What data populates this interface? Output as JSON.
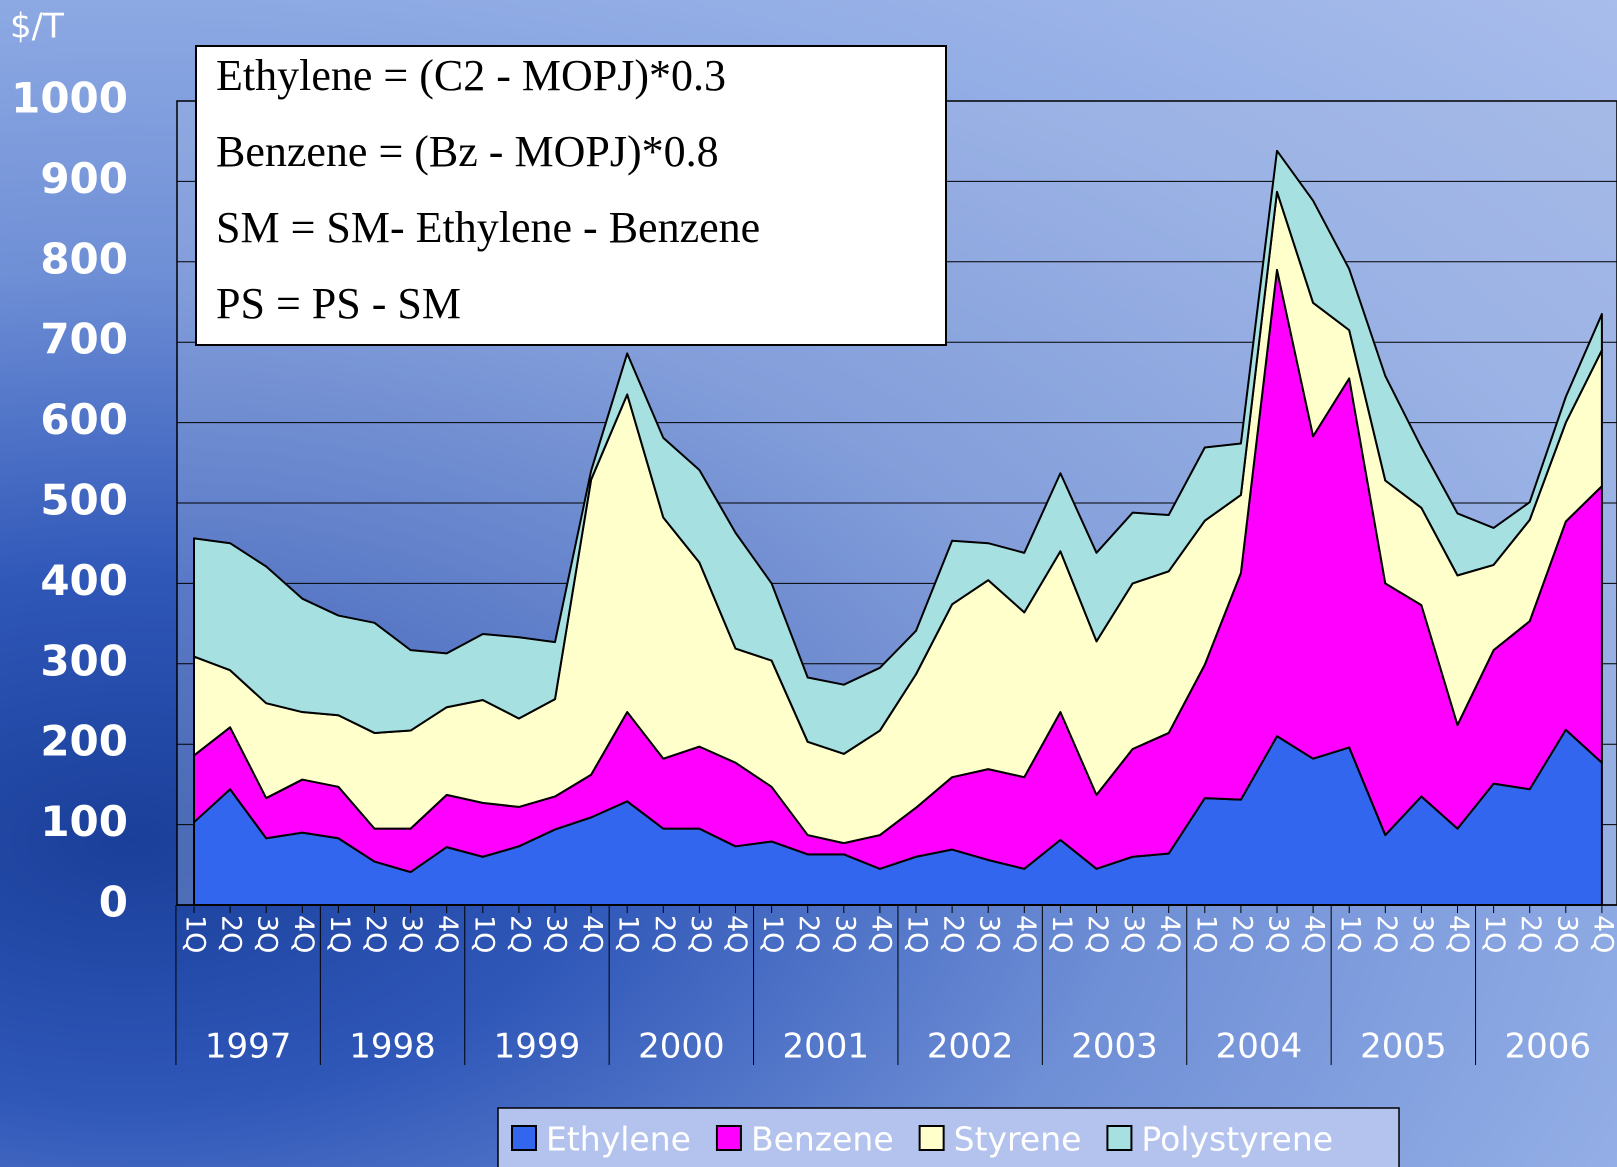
{
  "chart_data": {
    "type": "stacked_area",
    "y_label": "$/T",
    "annotations": [
      "Ethylene = (C2 - MOPJ)*0.3",
      "Benzene = (Bz - MOPJ)*0.8",
      "SM = SM- Ethylene - Benzene",
      "PS = PS - SM"
    ],
    "categories": [
      "1Q",
      "2Q",
      "3Q",
      "4Q",
      "1Q",
      "2Q",
      "3Q",
      "4Q",
      "1Q",
      "2Q",
      "3Q",
      "4Q",
      "1Q",
      "2Q",
      "3Q",
      "4Q",
      "1Q",
      "2Q",
      "3Q",
      "4Q",
      "1Q",
      "2Q",
      "3Q",
      "4Q",
      "1Q",
      "2Q",
      "3Q",
      "4Q",
      "1Q",
      "2Q",
      "3Q",
      "4Q",
      "1Q",
      "2Q",
      "3Q",
      "4Q",
      "1Q",
      "2Q",
      "3Q",
      "4Q"
    ],
    "years": [
      "1997",
      "1998",
      "1999",
      "2000",
      "2001",
      "2002",
      "2003",
      "2004",
      "2005",
      "2006"
    ],
    "ylim": [
      0,
      1000
    ],
    "yticks": [
      0,
      100,
      200,
      300,
      400,
      500,
      600,
      700,
      800,
      900,
      1000
    ],
    "grid": true,
    "legend": "bottom",
    "series": [
      {
        "name": "Ethylene",
        "color": "#3366ee",
        "values": [
          103,
          144,
          83,
          90,
          83,
          54,
          41,
          72,
          60,
          73,
          94,
          109,
          129,
          95,
          95,
          73,
          79,
          63,
          63,
          45,
          60,
          69,
          56,
          45,
          81,
          45,
          60,
          64,
          133,
          131,
          210,
          182,
          196,
          87,
          135,
          95,
          151,
          144,
          218,
          177
        ]
      },
      {
        "name": "Benzene",
        "color": "#ff00ff",
        "values": [
          83,
          77,
          50,
          66,
          64,
          41,
          54,
          65,
          67,
          49,
          41,
          53,
          111,
          87,
          102,
          104,
          68,
          24,
          14,
          42,
          61,
          90,
          113,
          114,
          159,
          92,
          134,
          150,
          166,
          282,
          580,
          401,
          459,
          313,
          238,
          129,
          166,
          209,
          259,
          344
        ]
      },
      {
        "name": "Styrene",
        "color": "#ffffcc",
        "values": [
          123,
          71,
          118,
          84,
          89,
          119,
          122,
          109,
          128,
          110,
          121,
          367,
          395,
          300,
          229,
          142,
          157,
          116,
          111,
          130,
          166,
          215,
          235,
          205,
          200,
          191,
          206,
          201,
          179,
          97,
          97,
          166,
          60,
          128,
          121,
          186,
          106,
          126,
          123,
          169
        ]
      },
      {
        "name": "Polystyrene",
        "color": "#a6e0e0",
        "values": [
          147,
          158,
          170,
          141,
          124,
          137,
          100,
          67,
          82,
          101,
          71,
          11,
          51,
          99,
          115,
          144,
          96,
          80,
          86,
          78,
          54,
          79,
          46,
          74,
          97,
          110,
          88,
          70,
          91,
          64,
          51,
          127,
          76,
          130,
          75,
          77,
          46,
          22,
          32,
          45
        ]
      }
    ]
  }
}
